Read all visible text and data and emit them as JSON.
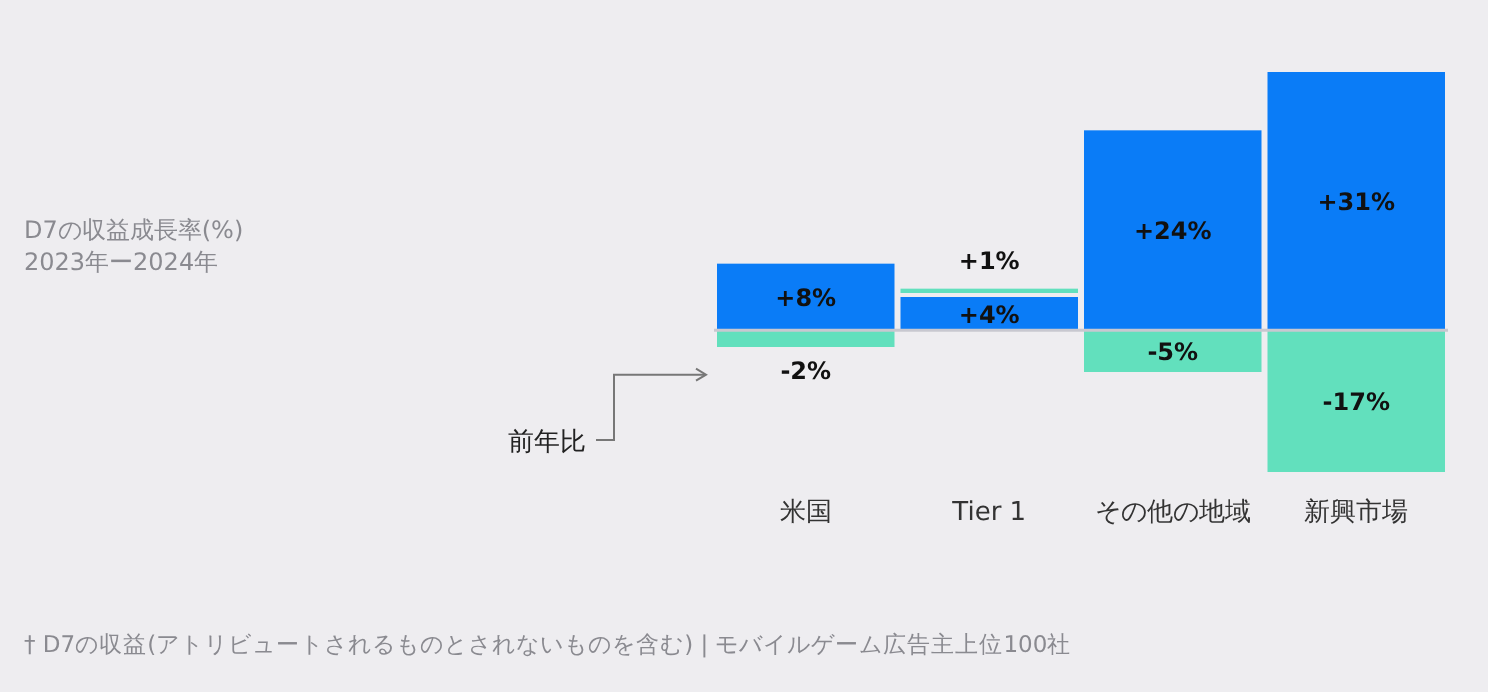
{
  "chart_data": {
    "type": "bar",
    "stacked": true,
    "title": "D7の収益成長率(%)",
    "subtitle": "2023年ー2024年",
    "categories": [
      "米国",
      "Tier 1",
      "その他の地域",
      "新興市場"
    ],
    "series": [
      {
        "color": "#0a7cf7",
        "values": [
          8,
          4,
          24,
          31
        ],
        "value_labels": [
          "+8%",
          "+4%",
          "+24%",
          "+31%"
        ]
      },
      {
        "name": "前年比",
        "color": "#62e0bd",
        "values": [
          -2,
          1,
          -5,
          -17
        ],
        "value_labels": [
          "-2%",
          "+1%",
          "-5%",
          "-17%"
        ]
      }
    ],
    "annotations": [
      "† D7の収益(アトリビュートされるものとされないものを含む) | モバイルゲーム広告主上位100社"
    ]
  }
}
